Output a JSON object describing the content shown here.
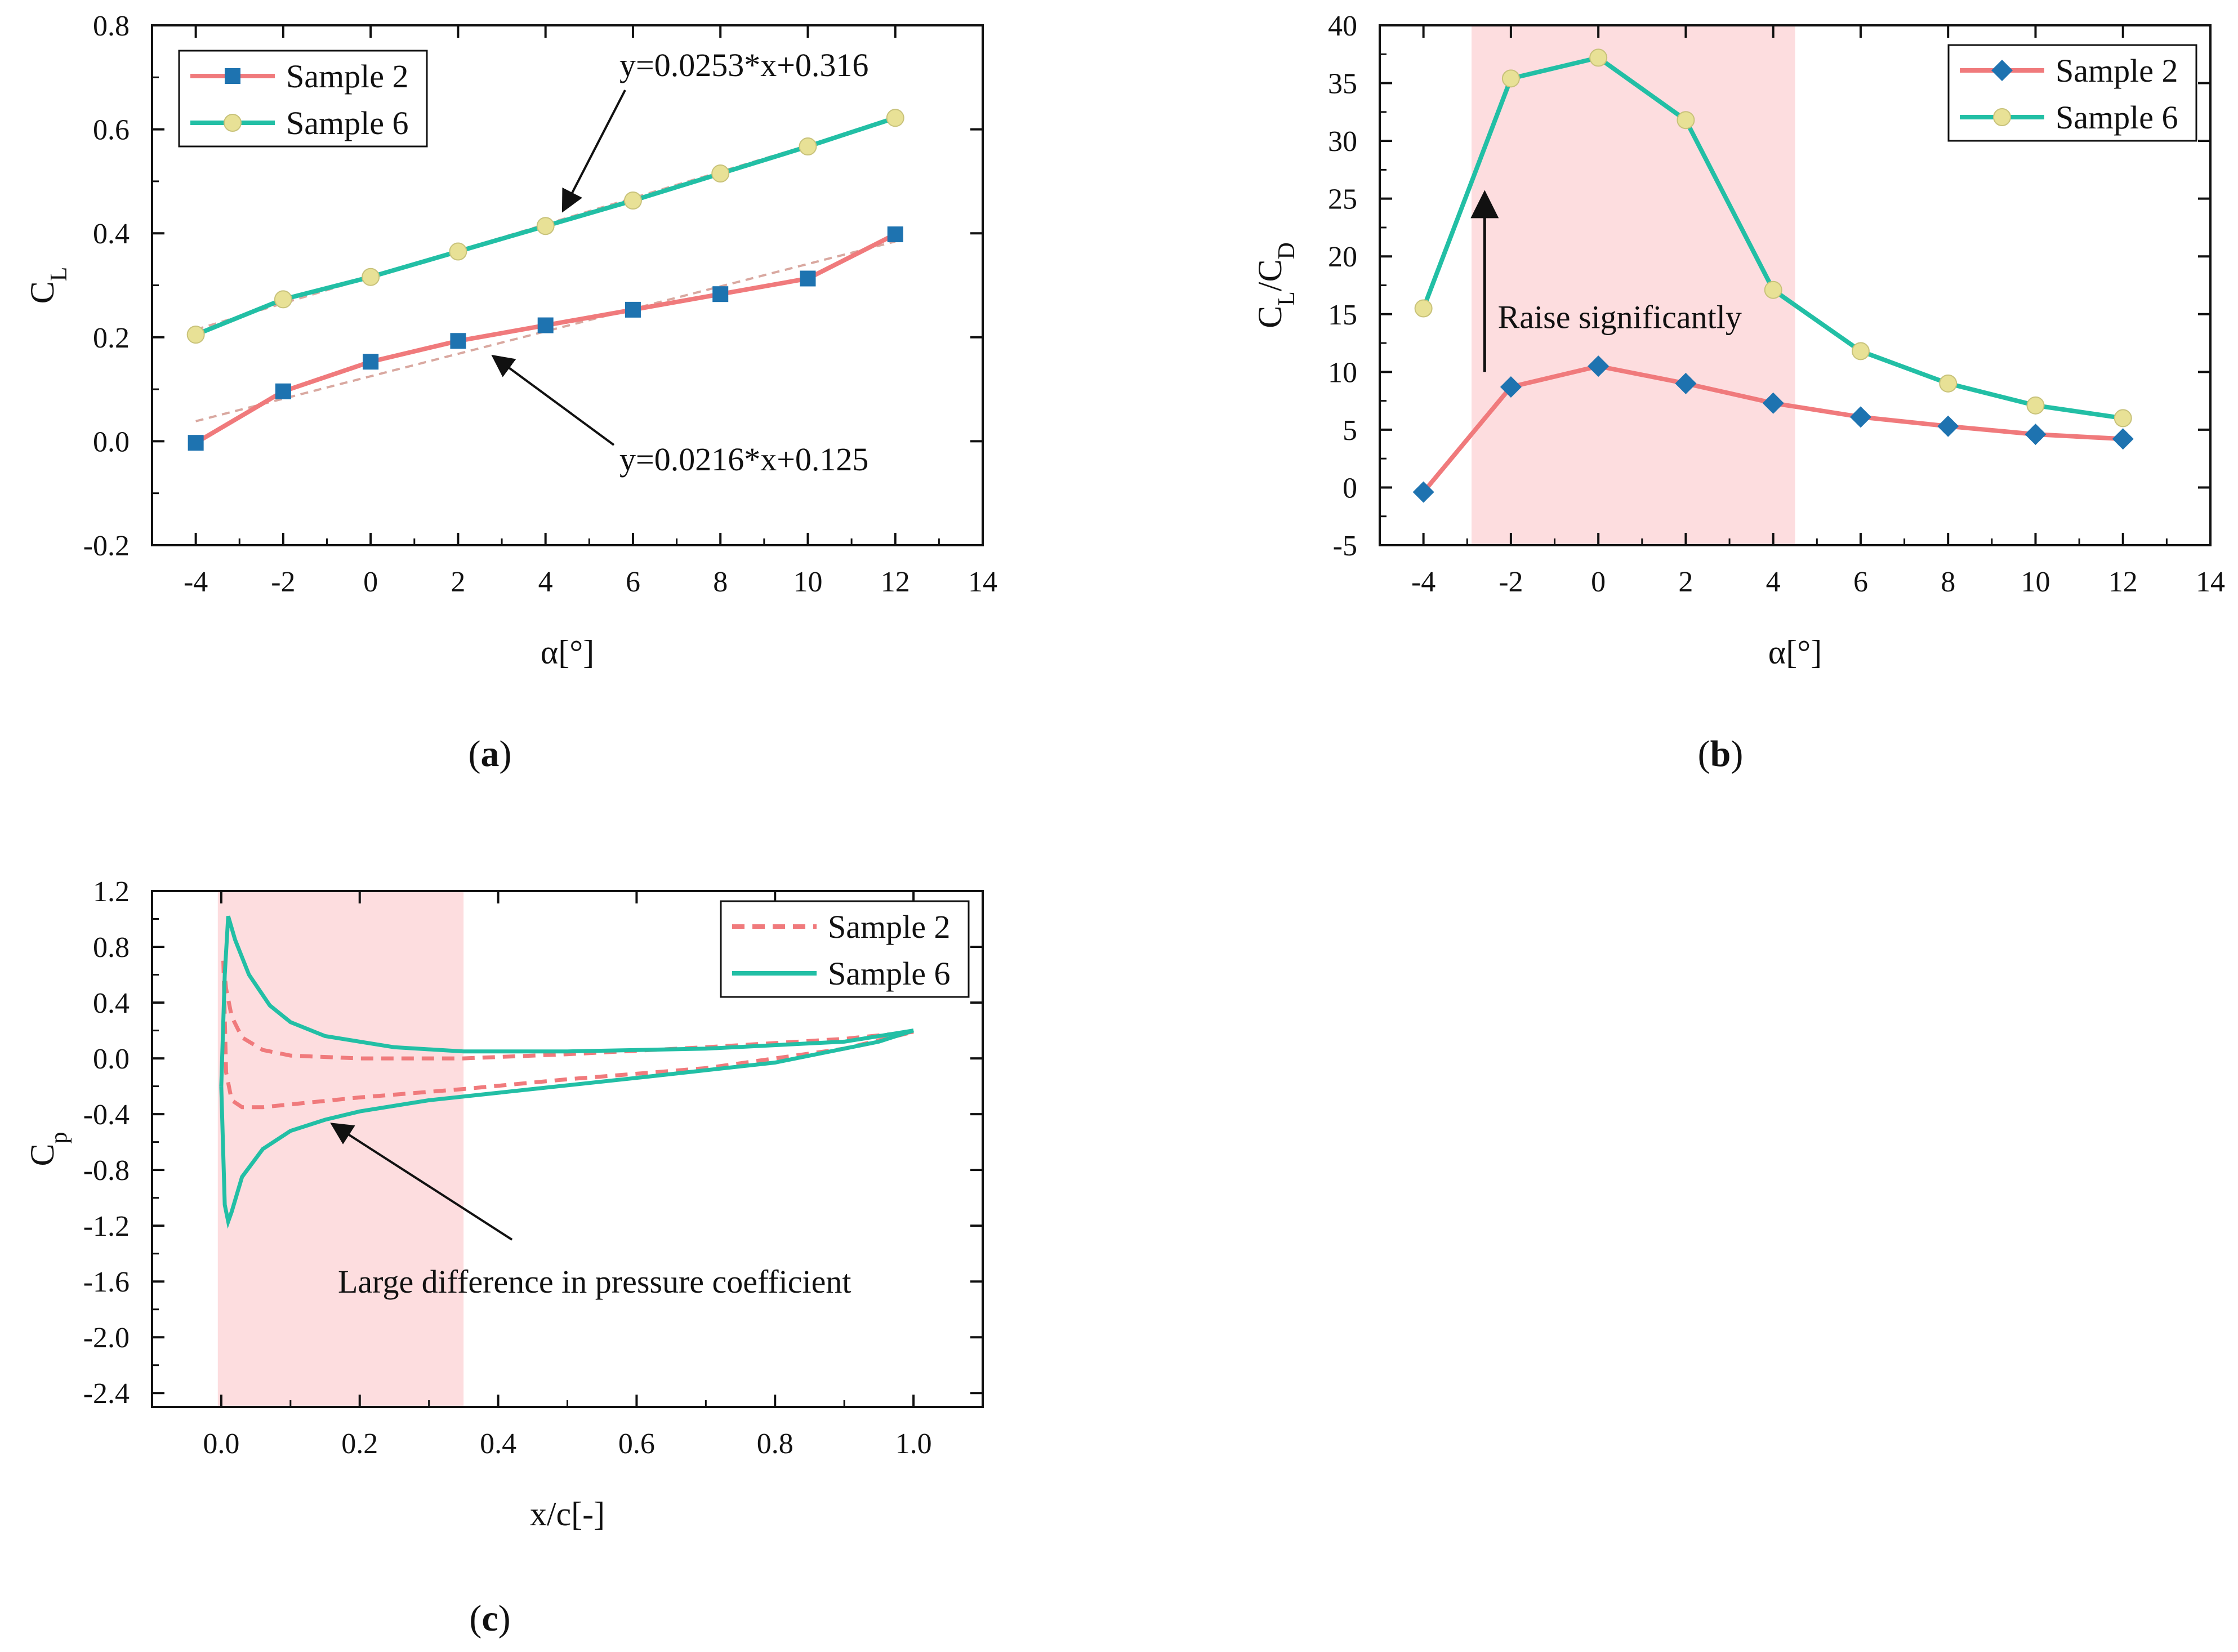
{
  "colors": {
    "sample2": "#F07A7C",
    "sample6": "#22BFA5",
    "marker2": "#1E73B0",
    "marker6": "#E8E196",
    "marker6_stroke": "#C8C27A",
    "highlight": "#FDDDDF",
    "fit": "#D9A8A0",
    "axis": "#111111"
  },
  "chart_data": [
    {
      "id": "a",
      "type": "line",
      "caption": {
        "open": "(",
        "letter": "a",
        "close": ")"
      },
      "xlabel": "α[°]",
      "ylabel": "C",
      "ylabel_sub": "L",
      "xlim": [
        -5,
        14
      ],
      "ylim": [
        -0.2,
        0.8
      ],
      "xticks": [
        -4,
        -2,
        0,
        2,
        4,
        6,
        8,
        10,
        12,
        14
      ],
      "yticks": [
        -0.2,
        0.0,
        0.2,
        0.4,
        0.6,
        0.8
      ],
      "xtick_labels": [
        "-4",
        "-2",
        "0",
        "2",
        "4",
        "6",
        "8",
        "10",
        "12",
        "14"
      ],
      "ytick_labels": [
        "-0.2",
        "0.0",
        "0.2",
        "0.4",
        "0.6",
        "0.8"
      ],
      "x": [
        -4,
        -2,
        0,
        2,
        4,
        6,
        8,
        10,
        12
      ],
      "series": [
        {
          "name": "Sample 2",
          "values": [
            -0.003,
            0.096,
            0.153,
            0.193,
            0.223,
            0.253,
            0.283,
            0.313,
            0.398
          ],
          "marker": "square"
        },
        {
          "name": "Sample 6",
          "values": [
            0.205,
            0.273,
            0.316,
            0.365,
            0.414,
            0.463,
            0.515,
            0.567,
            0.622
          ],
          "marker": "circle"
        }
      ],
      "fits": [
        {
          "label": "y=0.0216*x+0.125",
          "slope": 0.0216,
          "intercept": 0.125,
          "x_range": [
            -4,
            12
          ]
        },
        {
          "label": "y=0.0253*x+0.316",
          "slope": 0.0253,
          "intercept": 0.316,
          "x_range": [
            -4,
            12
          ]
        }
      ],
      "legend": "top-left"
    },
    {
      "id": "b",
      "type": "line",
      "caption": {
        "open": "(",
        "letter": "b",
        "close": ")"
      },
      "xlabel": "α[°]",
      "ylabel": "C",
      "ylabel_sub": "L",
      "ylabel_mid": "/C",
      "ylabel_sub2": "D",
      "xlim": [
        -5,
        14
      ],
      "ylim": [
        -5,
        40
      ],
      "xticks": [
        -4,
        -2,
        0,
        2,
        4,
        6,
        8,
        10,
        12,
        14
      ],
      "yticks": [
        -5,
        0,
        5,
        10,
        15,
        20,
        25,
        30,
        35,
        40
      ],
      "xtick_labels": [
        "-4",
        "-2",
        "0",
        "2",
        "4",
        "6",
        "8",
        "10",
        "12",
        "14"
      ],
      "ytick_labels": [
        "-5",
        "0",
        "5",
        "10",
        "15",
        "20",
        "25",
        "30",
        "35",
        "40"
      ],
      "x": [
        -4,
        -2,
        0,
        2,
        4,
        6,
        8,
        10,
        12
      ],
      "series": [
        {
          "name": "Sample 2",
          "values": [
            -0.4,
            8.7,
            10.5,
            9.0,
            7.3,
            6.1,
            5.3,
            4.6,
            4.2
          ],
          "marker": "diamond"
        },
        {
          "name": "Sample 6",
          "values": [
            15.5,
            35.4,
            37.2,
            31.8,
            17.1,
            11.8,
            9.0,
            7.1,
            6.0
          ],
          "marker": "circle"
        }
      ],
      "highlight_x": [
        -2.9,
        4.5
      ],
      "annotation": "Raise significantly",
      "legend": "top-right"
    },
    {
      "id": "c",
      "type": "line",
      "caption": {
        "open": "(",
        "letter": "c",
        "close": ")"
      },
      "xlabel": "x/c[-]",
      "ylabel": "C",
      "ylabel_sub": "p",
      "xlim": [
        -0.1,
        1.1
      ],
      "ylim": [
        -2.5,
        1.2
      ],
      "xticks": [
        0.0,
        0.2,
        0.4,
        0.6,
        0.8,
        1.0
      ],
      "yticks": [
        -2.4,
        -2.0,
        -1.6,
        -1.2,
        -0.8,
        -0.4,
        0.0,
        0.4,
        0.8,
        1.2
      ],
      "xtick_labels": [
        "0.0",
        "0.2",
        "0.4",
        "0.6",
        "0.8",
        "1.0"
      ],
      "ytick_labels": [
        "-2.4",
        "-2.0",
        "-1.6",
        "-1.2",
        "-0.8",
        "-0.4",
        "0.0",
        "0.4",
        "0.8",
        "1.2"
      ],
      "series": [
        {
          "name": "Sample 2",
          "style": "dashed",
          "upper": {
            "x": [
              0.003,
              0.007,
              0.015,
              0.03,
              0.06,
              0.1,
              0.2,
              0.35,
              0.5,
              0.7,
              0.9,
              1.0
            ],
            "y": [
              0.7,
              0.5,
              0.3,
              0.15,
              0.06,
              0.02,
              0.0,
              0.0,
              0.03,
              0.08,
              0.14,
              0.19
            ]
          },
          "lower": {
            "x": [
              0.003,
              0.007,
              0.015,
              0.03,
              0.06,
              0.1,
              0.2,
              0.35,
              0.5,
              0.7,
              0.9,
              1.0
            ],
            "y": [
              0.7,
              -0.1,
              -0.3,
              -0.35,
              -0.35,
              -0.33,
              -0.28,
              -0.22,
              -0.15,
              -0.07,
              0.07,
              0.19
            ]
          }
        },
        {
          "name": "Sample 6",
          "style": "solid",
          "upper": {
            "x": [
              0.0,
              0.005,
              0.01,
              0.02,
              0.04,
              0.07,
              0.1,
              0.15,
              0.25,
              0.35,
              0.5,
              0.7,
              0.9,
              1.0
            ],
            "y": [
              -0.2,
              0.6,
              1.02,
              0.85,
              0.6,
              0.38,
              0.26,
              0.16,
              0.08,
              0.05,
              0.05,
              0.07,
              0.12,
              0.2
            ]
          },
          "lower": {
            "x": [
              0.0,
              0.005,
              0.01,
              0.015,
              0.03,
              0.06,
              0.1,
              0.15,
              0.2,
              0.3,
              0.45,
              0.6,
              0.8,
              0.95,
              1.0
            ],
            "y": [
              -0.2,
              -1.05,
              -1.17,
              -1.1,
              -0.85,
              -0.65,
              -0.52,
              -0.44,
              -0.38,
              -0.3,
              -0.22,
              -0.14,
              -0.03,
              0.12,
              0.2
            ]
          }
        }
      ],
      "highlight_x": [
        -0.005,
        0.35
      ],
      "annotation": "Large difference in pressure coefficient",
      "legend": "top-right"
    }
  ]
}
